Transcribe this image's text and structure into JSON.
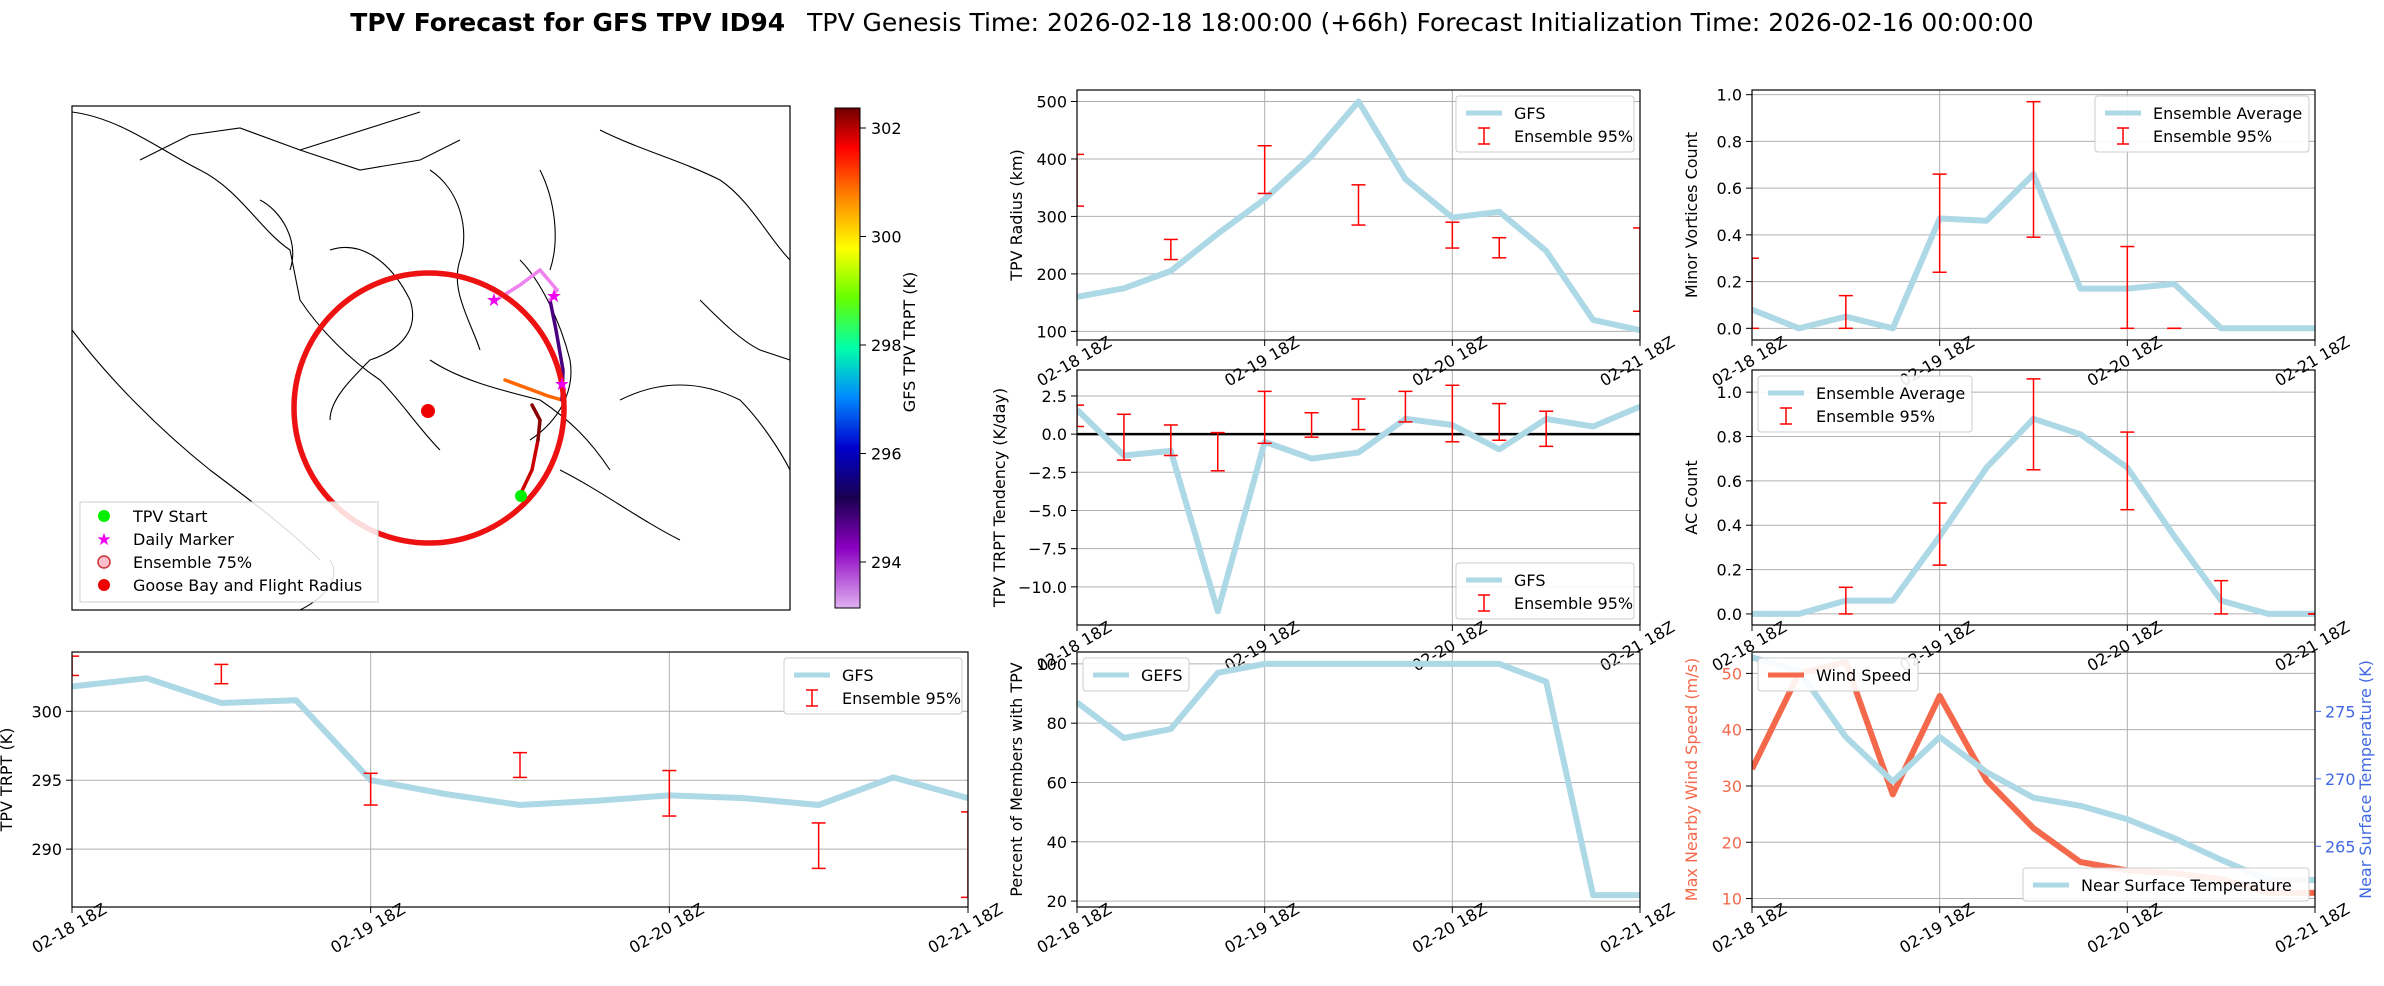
{
  "suptitle": {
    "bold": "TPV Forecast for GFS TPV ID94",
    "rest": "TPV Genesis Time: 2026-02-18 18:00:00 (+66h)   Forecast Initialization Time: 2026-02-16 00:00:00"
  },
  "colors": {
    "gfs": "#add8e6",
    "err": "#ff0000",
    "wind": "#f4694c",
    "temp_axis": "#4169e1",
    "grid": "#b0b0b0",
    "zero": "#000000"
  },
  "map": {
    "colorbar_label": "GFS TPV TRPT (K)",
    "colorbar_ticks": [
      294,
      296,
      298,
      300,
      302
    ],
    "legend": [
      "TPV Start",
      "Daily Marker",
      "Ensemble 75%",
      "Goose Bay and Flight Radius"
    ],
    "marker_colors": {
      "start": "#00ee00",
      "daily": "#ee00ee",
      "goose": "#ee0000",
      "radius": "#ee1111"
    }
  },
  "time_ticks": [
    "02-18 18Z",
    "02-19 18Z",
    "02-20 18Z",
    "02-21 18Z"
  ],
  "chart_data": [
    {
      "id": "radius",
      "type": "line",
      "ylabel": "TPV Radius (km)",
      "ylim": [
        85,
        520
      ],
      "yticks": [
        100,
        200,
        300,
        400,
        500
      ],
      "x": [
        0,
        6,
        12,
        18,
        24,
        30,
        36,
        42,
        48,
        54,
        60,
        66,
        72
      ],
      "series": [
        {
          "name": "GFS",
          "values": [
            160,
            175,
            205,
            270,
            330,
            405,
            500,
            365,
            298,
            308,
            240,
            120,
            102
          ]
        }
      ],
      "errorbars": {
        "name": "Ensemble 95%",
        "x": [
          0,
          12,
          24,
          36,
          48,
          54,
          72
        ],
        "low": [
          318,
          225,
          340,
          285,
          245,
          228,
          135
        ],
        "high": [
          408,
          260,
          423,
          355,
          290,
          263,
          280
        ]
      },
      "legend_loc": "top-right"
    },
    {
      "id": "minor",
      "type": "line",
      "ylabel": "Minor Vortices Count",
      "ylim": [
        -0.05,
        1.02
      ],
      "yticks": [
        "0.0",
        "0.2",
        "0.4",
        "0.6",
        "0.8",
        "1.0"
      ],
      "x": [
        0,
        6,
        12,
        18,
        24,
        30,
        36,
        42,
        48,
        54,
        60,
        66,
        72
      ],
      "series": [
        {
          "name": "Ensemble Average",
          "values": [
            0.08,
            0.0,
            0.05,
            0.0,
            0.47,
            0.46,
            0.66,
            0.17,
            0.17,
            0.19,
            0.0,
            0.0,
            0.0
          ]
        }
      ],
      "errorbars": {
        "name": "Ensemble 95%",
        "x": [
          0,
          12,
          24,
          36,
          48,
          54
        ],
        "low": [
          0.0,
          0.0,
          0.24,
          0.39,
          0.0,
          0.0
        ],
        "high": [
          0.3,
          0.14,
          0.66,
          0.97,
          0.35,
          0.0
        ]
      },
      "legend_loc": "top-right"
    },
    {
      "id": "tendency",
      "type": "line",
      "ylabel": "TPV TRPT Tendency (K/day)",
      "ylim": [
        -12.5,
        4.2
      ],
      "yticks": [
        "2.5",
        "0.0",
        "−2.5",
        "−5.0",
        "−7.5",
        "−10.0"
      ],
      "ytick_values": [
        2.5,
        0,
        -2.5,
        -5,
        -7.5,
        -10
      ],
      "zero_line": true,
      "x": [
        0,
        6,
        12,
        18,
        24,
        30,
        36,
        42,
        48,
        54,
        60,
        66,
        72
      ],
      "series": [
        {
          "name": "GFS",
          "values": [
            1.6,
            -1.4,
            -1.1,
            -11.6,
            -0.5,
            -1.6,
            -1.2,
            1.0,
            0.6,
            -1.0,
            1.0,
            0.5,
            1.8
          ]
        }
      ],
      "errorbars": {
        "name": "Ensemble 95%",
        "x": [
          0,
          6,
          12,
          18,
          24,
          30,
          36,
          42,
          48,
          54,
          60
        ],
        "low": [
          0.5,
          -1.7,
          -1.4,
          -2.4,
          -0.6,
          -0.2,
          0.3,
          0.8,
          -0.5,
          -0.4,
          -0.8
        ],
        "high": [
          1.9,
          1.3,
          0.6,
          0.1,
          2.8,
          1.4,
          2.3,
          2.8,
          3.2,
          2.0,
          1.5
        ]
      },
      "legend_loc": "bottom-right"
    },
    {
      "id": "ac",
      "type": "line",
      "ylabel": "AC Count",
      "ylim": [
        -0.05,
        1.1
      ],
      "yticks": [
        "0.0",
        "0.2",
        "0.4",
        "0.6",
        "0.8",
        "1.0"
      ],
      "x": [
        0,
        6,
        12,
        18,
        24,
        30,
        36,
        42,
        48,
        54,
        60,
        66,
        72
      ],
      "series": [
        {
          "name": "Ensemble Average",
          "values": [
            0.0,
            0.0,
            0.06,
            0.06,
            0.35,
            0.66,
            0.88,
            0.81,
            0.66,
            0.35,
            0.06,
            0.0,
            0.0
          ]
        }
      ],
      "errorbars": {
        "name": "Ensemble 95%",
        "x": [
          24,
          36,
          48,
          60,
          72
        ],
        "low": [
          0.22,
          0.65,
          0.47,
          0.0,
          0.0
        ],
        "high": [
          0.5,
          1.06,
          0.82,
          0.15,
          0.0
        ],
        "extra": {
          "x": [
            12
          ],
          "low": [
            0.0
          ],
          "high": [
            0.12
          ]
        }
      },
      "legend_loc": "top-left"
    },
    {
      "id": "trpt",
      "type": "line",
      "ylabel": "TPV TRPT (K)",
      "ylim": [
        285.8,
        304.3
      ],
      "yticks": [
        290,
        295,
        300
      ],
      "x": [
        0,
        6,
        12,
        18,
        24,
        30,
        36,
        42,
        48,
        54,
        60,
        66,
        72
      ],
      "series": [
        {
          "name": "GFS",
          "values": [
            301.8,
            302.4,
            300.6,
            300.8,
            295.0,
            294.0,
            293.2,
            293.5,
            293.9,
            293.7,
            293.2,
            295.2,
            293.7
          ]
        }
      ],
      "errorbars": {
        "name": "Ensemble 95%",
        "x": [
          0,
          12,
          24,
          36,
          48,
          60,
          72
        ],
        "low": [
          302.6,
          302.0,
          293.2,
          295.2,
          292.4,
          288.6,
          286.5
        ],
        "high": [
          304.0,
          303.4,
          295.5,
          297.0,
          295.7,
          291.9,
          292.7
        ]
      },
      "legend_loc": "top-right"
    },
    {
      "id": "percent",
      "type": "line",
      "ylabel": "Percent of Members with TPV",
      "ylim": [
        18,
        104
      ],
      "yticks": [
        20,
        40,
        60,
        80,
        100
      ],
      "x": [
        0,
        6,
        12,
        18,
        24,
        30,
        36,
        42,
        48,
        54,
        60,
        66,
        72
      ],
      "series": [
        {
          "name": "GEFS",
          "values": [
            87,
            75,
            78,
            97,
            100,
            100,
            100,
            100,
            100,
            100,
            94,
            22,
            22
          ]
        }
      ],
      "legend_loc": "top-left"
    },
    {
      "id": "wind",
      "type": "line",
      "ylabel": "Max Nearby Wind Speed (m/s)",
      "ylabel2": "Near Surface Temperature (K)",
      "ylim": [
        8.5,
        53.8
      ],
      "yticks": [
        10,
        20,
        30,
        40,
        50
      ],
      "ylim2": [
        260.5,
        279.4
      ],
      "yticks2": [
        265,
        270,
        275
      ],
      "x": [
        0,
        6,
        12,
        18,
        24,
        30,
        36,
        42,
        48,
        54,
        60,
        66,
        72
      ],
      "series": [
        {
          "name": "Wind Speed",
          "axis": "left",
          "values": [
            33,
            50,
            52,
            28.5,
            46,
            31,
            22.5,
            16.5,
            15,
            14.5,
            13.5,
            11,
            11
          ]
        },
        {
          "name": "Near Surface Temperature",
          "axis": "right",
          "values": [
            279.0,
            278.0,
            273.1,
            269.8,
            273.1,
            270.5,
            268.6,
            268.0,
            267.0,
            265.6,
            264.0,
            262.5,
            262.5
          ]
        }
      ],
      "legend_loc": [
        "top-left",
        "bottom-right"
      ]
    }
  ]
}
